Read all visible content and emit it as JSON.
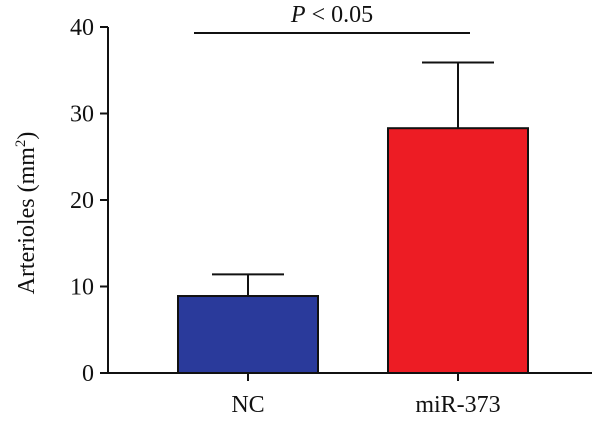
{
  "chart_data": {
    "type": "bar",
    "categories": [
      "NC",
      "miR-373"
    ],
    "values": [
      8.9,
      28.3
    ],
    "error_upper": [
      11.4,
      35.9
    ],
    "colors": [
      "#2a3a9b",
      "#ed1c24"
    ],
    "ylabel": "Arterioles (mm",
    "ylabel_superscript": "2",
    "ylabel_suffix": ")",
    "ylim": [
      0,
      40
    ],
    "yticks": [
      0,
      10,
      20,
      30,
      40
    ],
    "significance": {
      "from": "NC",
      "to": "miR-373",
      "label_italic": "P",
      "label_rest": " < 0.05"
    },
    "grid": false
  }
}
